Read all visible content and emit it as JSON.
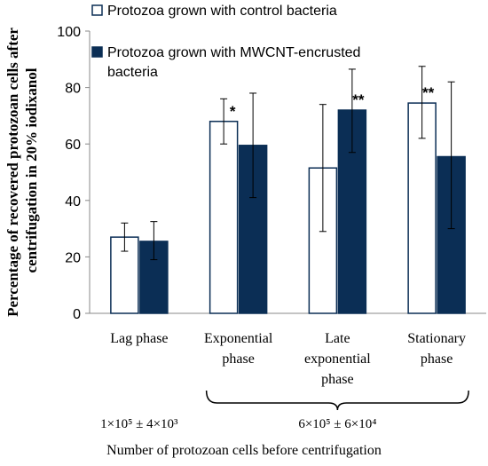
{
  "chart_data": {
    "type": "bar",
    "ylabel": "Percentage of recovered protozoan cells after centrifugation in 20% iodixanol",
    "ylabel_lines": [
      "Percentage of recovered protozoan cells after",
      "centrifugation in 20% iodixanol"
    ],
    "xlabel": "Number of protozoan cells before centrifugation",
    "ylim": [
      0,
      100
    ],
    "yticks": [
      0,
      20,
      40,
      60,
      80,
      100
    ],
    "categories": [
      "Lag phase",
      "Exponential phase",
      "Late exponential phase",
      "Stationary phase"
    ],
    "category_lines": [
      [
        "Lag phase"
      ],
      [
        "Exponential",
        "phase"
      ],
      [
        "Late",
        "exponential",
        "phase"
      ],
      [
        "Stationary",
        "phase"
      ]
    ],
    "series": [
      {
        "name": "Protozoa grown with control bacteria",
        "legend_lines": [
          "Protozoa grown with control bacteria"
        ],
        "color": "#ffffff",
        "stroke": "#0b2e55",
        "values": [
          27,
          68,
          51.5,
          74.5
        ],
        "err_low": [
          22,
          60,
          29,
          62
        ],
        "err_high": [
          32,
          76,
          74,
          87.5
        ],
        "significance": [
          "",
          "*",
          "",
          "**"
        ]
      },
      {
        "name": "Protozoa grown with MWCNT-encrusted bacteria",
        "legend_lines": [
          "Protozoa grown with MWCNT-encrusted",
          "bacteria"
        ],
        "color": "#0b2e55",
        "stroke": "#0b2e55",
        "values": [
          25.5,
          59.5,
          72,
          55.5
        ],
        "err_low": [
          19,
          41,
          57,
          30
        ],
        "err_high": [
          32.5,
          78,
          86.5,
          82
        ],
        "significance": [
          "",
          "",
          "**",
          ""
        ]
      }
    ],
    "group_notes": [
      {
        "text": "1×10⁵ ± 4×10³",
        "categories": [
          0
        ]
      },
      {
        "text": "6×10⁵ ± 6×10⁴",
        "categories": [
          1,
          2,
          3
        ],
        "bracket": true
      }
    ],
    "grid": false,
    "legend_position": "top-right",
    "colors": {
      "accent": "#0b2e55",
      "axis": "#888888"
    }
  }
}
